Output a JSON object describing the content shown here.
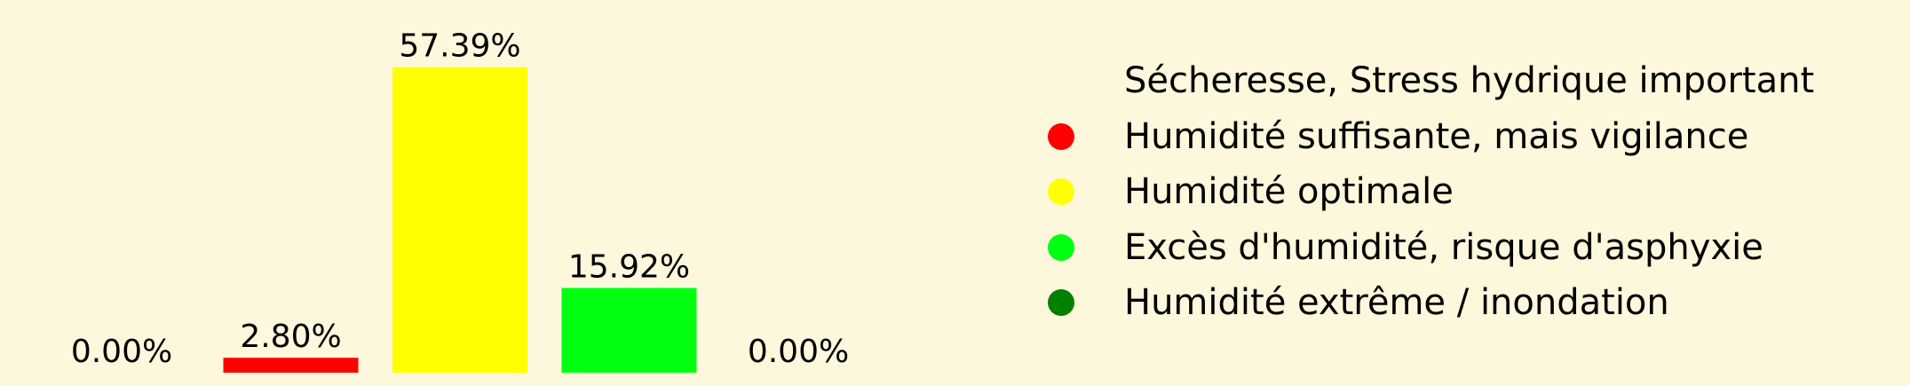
{
  "chart_data": {
    "type": "bar",
    "categories": [
      "Sécheresse, Stress hydrique important",
      "Humidité suffisante, mais vigilance",
      "Humidité optimale",
      "Excès d'humidité, risque d'asphyxie",
      "Humidité extrême / inondation"
    ],
    "values": [
      0.0,
      2.8,
      57.39,
      15.92,
      0.0
    ],
    "value_labels": [
      "0.00%",
      "2.80%",
      "57.39%",
      "15.92%",
      "0.00%"
    ],
    "colors": [
      "#fdf7dc",
      "#ff0000",
      "#ffff00",
      "#00ff11",
      "#008000"
    ],
    "ylim": [
      0,
      60
    ],
    "grid": false,
    "legend_placement": "right"
  }
}
